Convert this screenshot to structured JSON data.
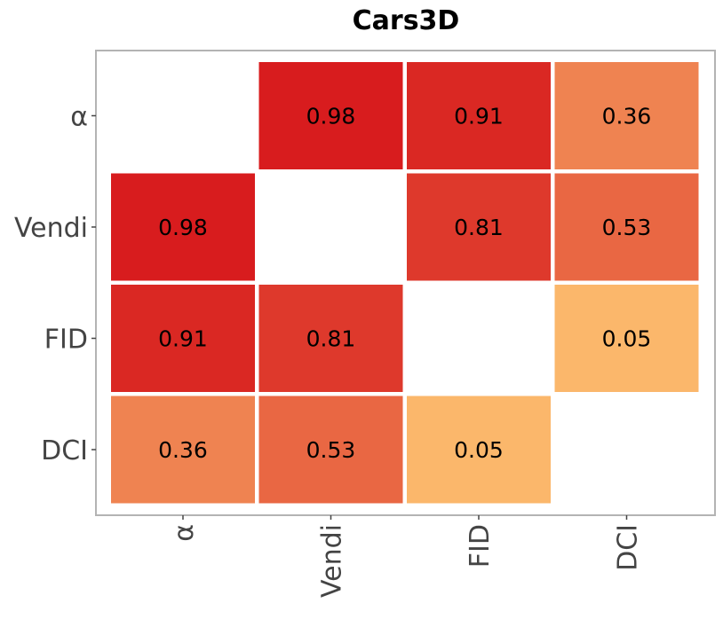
{
  "chart_data": {
    "type": "heatmap",
    "title": "Cars3D",
    "xlabel": "",
    "ylabel": "",
    "x_categories": [
      "α",
      "Vendi",
      "FID",
      "DCI"
    ],
    "y_categories": [
      "α",
      "Vendi",
      "FID",
      "DCI"
    ],
    "values": [
      [
        null,
        0.98,
        0.91,
        0.36
      ],
      [
        0.98,
        null,
        0.81,
        0.53
      ],
      [
        0.91,
        0.81,
        null,
        0.05
      ],
      [
        0.36,
        0.53,
        0.05,
        null
      ]
    ],
    "labels": [
      [
        null,
        "0.98",
        "0.91",
        "0.36"
      ],
      [
        "0.98",
        null,
        "0.81",
        "0.53"
      ],
      [
        "0.91",
        "0.81",
        null,
        "0.05"
      ],
      [
        "0.36",
        "0.53",
        "0.05",
        null
      ]
    ],
    "value_range": [
      0,
      1
    ],
    "colormap": {
      "low": "#fdbf6f",
      "high": "#d7191c"
    },
    "grid": false,
    "legend": "none"
  }
}
